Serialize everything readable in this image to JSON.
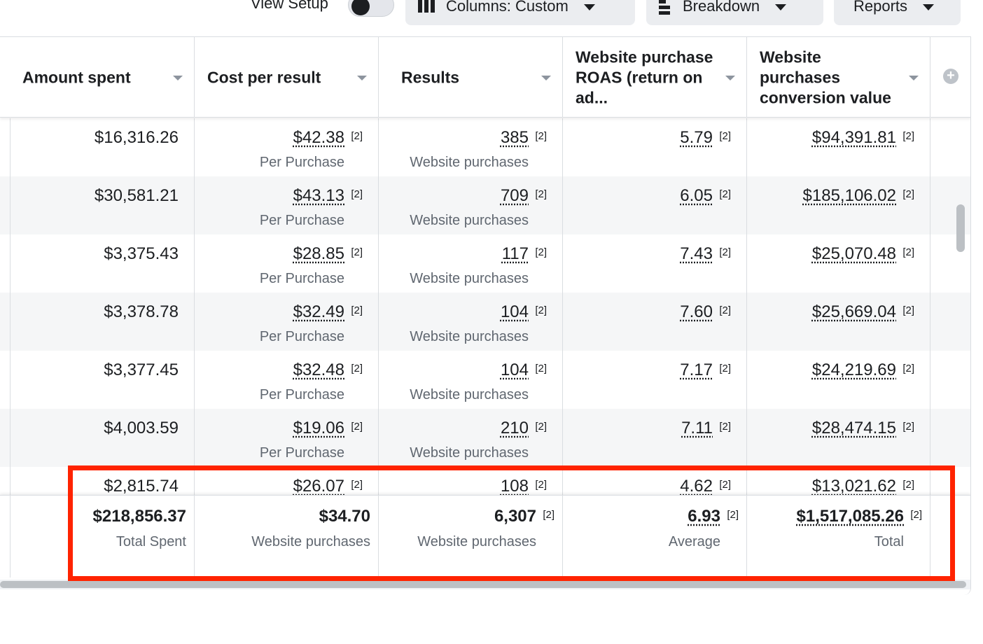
{
  "toolbar": {
    "view_setup_label": "View Setup",
    "columns_label": "Columns: Custom",
    "breakdown_label": "Breakdown",
    "reports_label": "Reports"
  },
  "table": {
    "headers": [
      "Amount spent",
      "Cost per result",
      "Results",
      "Website purchase ROAS (return on ad...",
      "Website purchases conversion value"
    ],
    "footnote": "[2]",
    "rows": [
      {
        "amount": "$16,316.26",
        "cost": "$42.38",
        "cost_sub": "Per Purchase",
        "results": "385",
        "results_sub": "Website purchases",
        "roas": "5.79",
        "value": "$94,391.81"
      },
      {
        "amount": "$30,581.21",
        "cost": "$43.13",
        "cost_sub": "Per Purchase",
        "results": "709",
        "results_sub": "Website purchases",
        "roas": "6.05",
        "value": "$185,106.02"
      },
      {
        "amount": "$3,375.43",
        "cost": "$28.85",
        "cost_sub": "Per Purchase",
        "results": "117",
        "results_sub": "Website purchases",
        "roas": "7.43",
        "value": "$25,070.48"
      },
      {
        "amount": "$3,378.78",
        "cost": "$32.49",
        "cost_sub": "Per Purchase",
        "results": "104",
        "results_sub": "Website purchases",
        "roas": "7.60",
        "value": "$25,669.04"
      },
      {
        "amount": "$3,377.45",
        "cost": "$32.48",
        "cost_sub": "Per Purchase",
        "results": "104",
        "results_sub": "Website purchases",
        "roas": "7.17",
        "value": "$24,219.69"
      },
      {
        "amount": "$4,003.59",
        "cost": "$19.06",
        "cost_sub": "Per Purchase",
        "results": "210",
        "results_sub": "Website purchases",
        "roas": "7.11",
        "value": "$28,474.15"
      },
      {
        "amount": "$2,815.74",
        "cost": "$26.07",
        "cost_sub": "",
        "results": "108",
        "results_sub": "",
        "roas": "4.62",
        "value": "$13,021.62"
      }
    ],
    "summary": {
      "amount": "$218,856.37",
      "amount_sub": "Total Spent",
      "cost": "$34.70",
      "cost_sub": "Website purchases",
      "results": "6,307",
      "results_sub": "Website purchases",
      "roas": "6.93",
      "roas_sub": "Average",
      "value": "$1,517,085.26",
      "value_sub": "Total"
    }
  },
  "colors": {
    "highlight": "#ff2300",
    "alt_row": "#f5f6f7",
    "border": "#dadde1"
  }
}
